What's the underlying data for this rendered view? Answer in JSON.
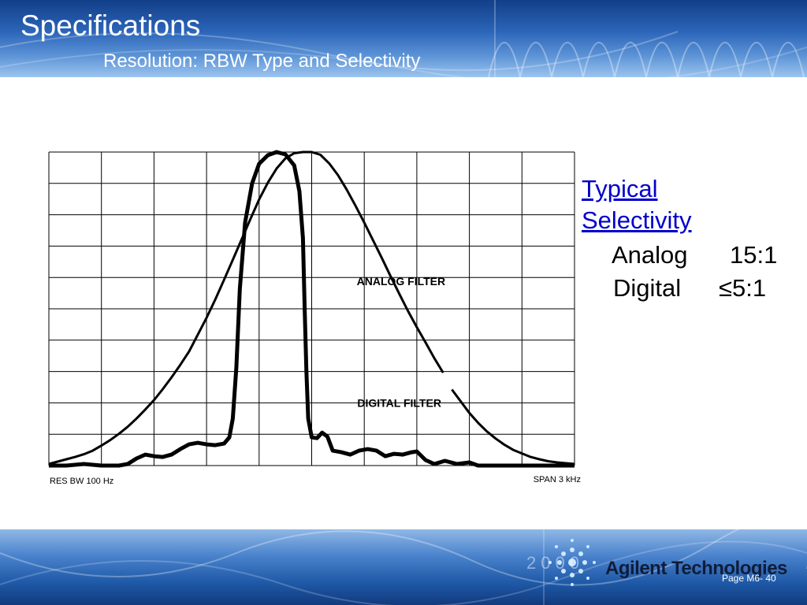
{
  "slide": {
    "title": "Specifications",
    "subtitle": "Resolution: RBW Type and Selectivity"
  },
  "side_panel": {
    "heading_line1": "Typical",
    "heading_line2": "Selectivity",
    "rows": [
      {
        "label": "Analog",
        "value": "15:1"
      },
      {
        "label": "Digital",
        "value": "≤5:1"
      }
    ]
  },
  "footer": {
    "logo_text": "Agilent Technologies",
    "page_number": "Page M6- 40",
    "year_watermark": "2000"
  },
  "colors": {
    "header_blue": "#2b64b8",
    "link_blue": "#0000cc",
    "trace": "#000000"
  },
  "chart_data": {
    "type": "line",
    "grid": true,
    "grid_divisions": {
      "x": 10,
      "y": 10
    },
    "x_center": 0,
    "xlim": [
      -1500,
      1500
    ],
    "x_unit": "Hz",
    "ylim": [
      -80,
      0
    ],
    "y_unit": "dB",
    "x_label_left": "RES BW 100 Hz",
    "x_label_right": "SPAN 3 kHz",
    "series": [
      {
        "name": "ANALOG FILTER",
        "label_at": {
          "x": 510,
          "y": -34
        },
        "points": [
          [
            -1500,
            -79.6
          ],
          [
            -1450,
            -79.0
          ],
          [
            -1400,
            -78.4
          ],
          [
            -1350,
            -77.8
          ],
          [
            -1300,
            -77.1
          ],
          [
            -1250,
            -76.2
          ],
          [
            -1200,
            -74.9
          ],
          [
            -1150,
            -73.5
          ],
          [
            -1100,
            -71.9
          ],
          [
            -1050,
            -70.1
          ],
          [
            -1000,
            -68.0
          ],
          [
            -950,
            -65.7
          ],
          [
            -900,
            -63.3
          ],
          [
            -850,
            -60.5
          ],
          [
            -800,
            -57.5
          ],
          [
            -750,
            -54.3
          ],
          [
            -700,
            -50.9
          ],
          [
            -650,
            -46.6
          ],
          [
            -600,
            -42.3
          ],
          [
            -550,
            -37.6
          ],
          [
            -500,
            -32.6
          ],
          [
            -450,
            -27.5
          ],
          [
            -400,
            -22.3
          ],
          [
            -350,
            -17.1
          ],
          [
            -300,
            -12.1
          ],
          [
            -250,
            -7.8
          ],
          [
            -200,
            -4.2
          ],
          [
            -150,
            -1.6
          ],
          [
            -100,
            -0.3
          ],
          [
            -50,
            0
          ],
          [
            0,
            0
          ],
          [
            50,
            -0.7
          ],
          [
            100,
            -2.9
          ],
          [
            150,
            -5.9
          ],
          [
            200,
            -9.6
          ],
          [
            250,
            -13.7
          ],
          [
            300,
            -18.0
          ],
          [
            350,
            -22.5
          ],
          [
            400,
            -27.0
          ],
          [
            450,
            -31.7
          ],
          [
            500,
            -36.2
          ],
          [
            550,
            -40.6
          ],
          [
            600,
            -44.7
          ],
          [
            650,
            -48.6
          ],
          [
            700,
            -52.6
          ],
          [
            750,
            -56.3
          ]
        ],
        "points_tail": [
          [
            800,
            -60.6
          ],
          [
            850,
            -63.6
          ],
          [
            900,
            -66.6
          ],
          [
            950,
            -69.1
          ],
          [
            1000,
            -71.3
          ],
          [
            1050,
            -73.1
          ],
          [
            1100,
            -74.7
          ],
          [
            1150,
            -76.0
          ],
          [
            1200,
            -76.9
          ],
          [
            1250,
            -77.8
          ],
          [
            1300,
            -78.4
          ],
          [
            1350,
            -78.9
          ],
          [
            1400,
            -79.2
          ],
          [
            1450,
            -79.4
          ],
          [
            1500,
            -79.6
          ]
        ]
      },
      {
        "name": "DIGITAL FILTER",
        "label_at": {
          "x": 500,
          "y": -65
        },
        "points": [
          [
            -1500,
            -80
          ],
          [
            -1400,
            -80
          ],
          [
            -1300,
            -79.6
          ],
          [
            -1250,
            -79.8
          ],
          [
            -1200,
            -80
          ],
          [
            -1100,
            -80
          ],
          [
            -1050,
            -79.6
          ],
          [
            -1000,
            -78.2
          ],
          [
            -950,
            -77.2
          ],
          [
            -900,
            -77.6
          ],
          [
            -850,
            -77.8
          ],
          [
            -800,
            -77.2
          ],
          [
            -750,
            -75.8
          ],
          [
            -700,
            -74.6
          ],
          [
            -650,
            -74.2
          ],
          [
            -600,
            -74.6
          ],
          [
            -550,
            -74.8
          ],
          [
            -500,
            -74.4
          ],
          [
            -470,
            -72.8
          ],
          [
            -450,
            -68.0
          ],
          [
            -430,
            -55.0
          ],
          [
            -410,
            -35.0
          ],
          [
            -380,
            -18.0
          ],
          [
            -340,
            -8.0
          ],
          [
            -300,
            -3.0
          ],
          [
            -250,
            -0.8
          ],
          [
            -200,
            0
          ],
          [
            -150,
            -0.6
          ],
          [
            -100,
            -3.4
          ],
          [
            -70,
            -10.0
          ],
          [
            -50,
            -22.0
          ],
          [
            -40,
            -40.0
          ],
          [
            -30,
            -56.0
          ],
          [
            -20,
            -68.0
          ],
          [
            0,
            -72.8
          ],
          [
            30,
            -73.0
          ],
          [
            60,
            -71.6
          ],
          [
            90,
            -72.6
          ],
          [
            120,
            -76.2
          ],
          [
            170,
            -76.6
          ],
          [
            220,
            -77.2
          ],
          [
            270,
            -76.2
          ],
          [
            320,
            -75.8
          ],
          [
            370,
            -76.2
          ],
          [
            420,
            -77.6
          ],
          [
            470,
            -77.0
          ],
          [
            520,
            -77.2
          ],
          [
            570,
            -76.6
          ],
          [
            600,
            -76.4
          ],
          [
            650,
            -78.6
          ],
          [
            700,
            -79.6
          ],
          [
            760,
            -78.8
          ],
          [
            830,
            -79.6
          ],
          [
            900,
            -79.2
          ],
          [
            950,
            -80
          ],
          [
            1000,
            -80
          ],
          [
            1100,
            -80
          ],
          [
            1200,
            -80
          ],
          [
            1300,
            -80
          ],
          [
            1400,
            -80
          ],
          [
            1500,
            -80
          ]
        ]
      }
    ]
  }
}
